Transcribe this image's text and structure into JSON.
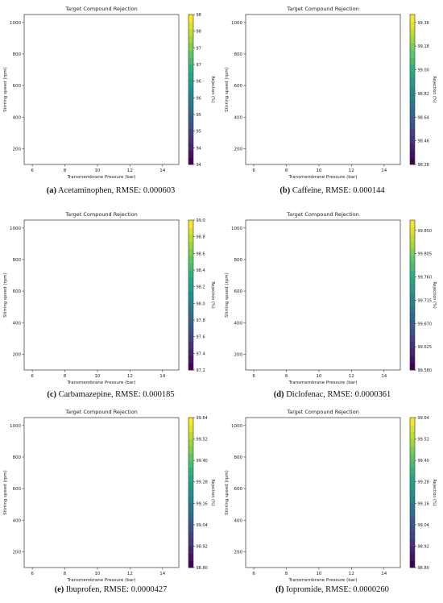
{
  "chart_data": [
    {
      "type": "contour",
      "title": "Target Compound Rejection",
      "xlabel": "Transmembrane Pressure (bar)",
      "ylabel": "Stirring speed (rpm)",
      "colorbar_label": "Rejection (%)",
      "xlim": [
        5.5,
        15
      ],
      "ylim": [
        100,
        1050
      ],
      "x_ticks": [
        6,
        8,
        10,
        12,
        14
      ],
      "y_ticks": [
        200,
        400,
        600,
        800,
        1000
      ],
      "zlim": [
        93.5,
        98.0
      ],
      "colorbar_ticks": [
        93.5,
        94.0,
        94.5,
        95.0,
        95.5,
        96.0,
        96.5,
        97.0,
        97.5,
        98.0
      ],
      "caption_letter": "(a)",
      "caption_text": " Acetaminophen, RMSE: 0.000603"
    },
    {
      "type": "contour",
      "title": "Target Compound Rejection",
      "xlabel": "Transmembrane Pressure (bar)",
      "ylabel": "Stirring speed (rpm)",
      "colorbar_label": "Rejection (%)",
      "xlim": [
        5.5,
        15
      ],
      "ylim": [
        100,
        1050
      ],
      "x_ticks": [
        6,
        8,
        10,
        12,
        14
      ],
      "y_ticks": [
        200,
        400,
        600,
        800,
        1000
      ],
      "zlim": [
        98.28,
        99.42
      ],
      "colorbar_ticks": [
        98.28,
        98.46,
        98.64,
        98.82,
        99.0,
        99.18,
        99.36
      ],
      "caption_letter": "(b)",
      "caption_text": " Caffeine, RMSE: 0.000144"
    },
    {
      "type": "contour",
      "title": "Target Compound Rejection",
      "xlabel": "Transmembrane Pressure (bar)",
      "ylabel": "Stirring speed (rpm)",
      "colorbar_label": "Rejection (%)",
      "xlim": [
        5.5,
        15
      ],
      "ylim": [
        100,
        1050
      ],
      "x_ticks": [
        6,
        8,
        10,
        12,
        14
      ],
      "y_ticks": [
        200,
        400,
        600,
        800,
        1000
      ],
      "zlim": [
        97.2,
        99.0
      ],
      "colorbar_ticks": [
        97.2,
        97.4,
        97.6,
        97.8,
        98.0,
        98.2,
        98.4,
        98.6,
        98.8,
        99.0
      ],
      "caption_letter": "(c)",
      "caption_text": " Carbamazepine, RMSE: 0.000185"
    },
    {
      "type": "contour",
      "title": "Target Compound Rejection",
      "xlabel": "Transmembrane Pressure (bar)",
      "ylabel": "Stirring speed (rpm)",
      "colorbar_label": "Rejection (%)",
      "xlim": [
        5.5,
        15
      ],
      "ylim": [
        100,
        1050
      ],
      "x_ticks": [
        6,
        8,
        10,
        12,
        14
      ],
      "y_ticks": [
        200,
        400,
        600,
        800,
        1000
      ],
      "zlim": [
        99.58,
        99.87
      ],
      "colorbar_ticks": [
        99.58,
        99.625,
        99.67,
        99.715,
        99.76,
        99.805,
        99.85
      ],
      "caption_letter": "(d)",
      "caption_text": " Diclofenac, RMSE: 0.0000361"
    },
    {
      "type": "contour",
      "title": "Target Compound Rejection",
      "xlabel": "Transmembrane Pressure (bar)",
      "ylabel": "Stirring speed (rpm)",
      "colorbar_label": "Rejection (%)",
      "xlim": [
        5.5,
        15
      ],
      "ylim": [
        100,
        1050
      ],
      "x_ticks": [
        6,
        8,
        10,
        12,
        14
      ],
      "y_ticks": [
        200,
        400,
        600,
        800,
        1000
      ],
      "zlim": [
        98.8,
        99.64
      ],
      "colorbar_ticks": [
        98.8,
        98.92,
        99.04,
        99.16,
        99.28,
        99.4,
        99.52,
        99.64
      ],
      "caption_letter": "(e)",
      "caption_text": " Ibuprofen, RMSE: 0.0000427"
    },
    {
      "type": "contour",
      "title": "Target Compound Rejection",
      "xlabel": "Transmembrane Pressure (bar)",
      "ylabel": "Stirring speed (rpm)",
      "colorbar_label": "Rejection (%)",
      "xlim": [
        5.5,
        15
      ],
      "ylim": [
        100,
        1050
      ],
      "x_ticks": [
        6,
        8,
        10,
        12,
        14
      ],
      "y_ticks": [
        200,
        400,
        600,
        800,
        1000
      ],
      "zlim": [
        98.8,
        99.64
      ],
      "colorbar_ticks": [
        98.8,
        98.92,
        99.04,
        99.16,
        99.28,
        99.4,
        99.52,
        99.64
      ],
      "caption_letter": "(f)",
      "caption_text": " Iopromide, RMSE: 0.0000260"
    }
  ]
}
